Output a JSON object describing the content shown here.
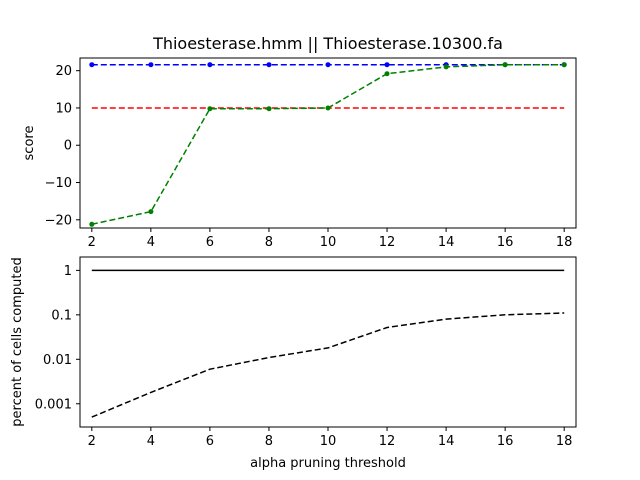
{
  "chart_data": [
    {
      "type": "line",
      "title": "Thioesterase.hmm || Thioesterase.10300.fa",
      "xlabel": "",
      "ylabel": "score",
      "xlim": [
        1.6,
        18.4
      ],
      "ylim": [
        -22.2,
        23.4
      ],
      "x_ticks": [
        2,
        4,
        6,
        8,
        10,
        12,
        14,
        16,
        18
      ],
      "y_ticks": [
        -20,
        -10,
        0,
        10,
        20
      ],
      "x_tick_labels": [
        "2",
        "4",
        "6",
        "8",
        "10",
        "12",
        "14",
        "16",
        "18"
      ],
      "y_tick_labels": [
        "−20",
        "−10",
        "0",
        "10",
        "20"
      ],
      "grid": false,
      "series": [
        {
          "color": "#0000ff",
          "linestyle": "dashed",
          "marker": "circle",
          "x": [
            2,
            4,
            6,
            8,
            10,
            12,
            14,
            16,
            18
          ],
          "y": [
            21.6,
            21.6,
            21.6,
            21.6,
            21.6,
            21.6,
            21.6,
            21.6,
            21.6
          ]
        },
        {
          "color": "#ff0000",
          "linestyle": "dashed",
          "marker": "none",
          "x": [
            2,
            18
          ],
          "y": [
            10,
            10
          ]
        },
        {
          "color": "#008000",
          "linestyle": "dashed",
          "marker": "circle",
          "x": [
            2,
            4,
            6,
            8,
            10,
            12,
            14,
            16,
            18
          ],
          "y": [
            -21.2,
            -17.8,
            9.8,
            9.8,
            10.0,
            19.2,
            21.0,
            21.6,
            21.6
          ]
        }
      ]
    },
    {
      "type": "line",
      "title": "",
      "xlabel": "alpha pruning threshold",
      "ylabel": "percent of cells computed",
      "xlim": [
        1.6,
        18.4
      ],
      "ylim": [
        0.0003,
        2.0
      ],
      "yscale": "log",
      "x_ticks": [
        2,
        4,
        6,
        8,
        10,
        12,
        14,
        16,
        18
      ],
      "y_ticks": [
        0.001,
        0.01,
        0.1,
        1
      ],
      "x_tick_labels": [
        "2",
        "4",
        "6",
        "8",
        "10",
        "12",
        "14",
        "16",
        "18"
      ],
      "y_tick_labels": [
        "0.001",
        "0.01",
        "0.1",
        "1"
      ],
      "grid": false,
      "series": [
        {
          "color": "#000000",
          "linestyle": "solid",
          "marker": "none",
          "x": [
            2,
            4,
            6,
            8,
            10,
            12,
            14,
            16,
            18
          ],
          "y": [
            1,
            1,
            1,
            1,
            1,
            1,
            1,
            1,
            1
          ]
        },
        {
          "color": "#000000",
          "linestyle": "dashed",
          "marker": "none",
          "x": [
            2,
            4,
            6,
            8,
            10,
            12,
            14,
            16,
            18
          ],
          "y": [
            0.0005,
            0.0018,
            0.006,
            0.011,
            0.018,
            0.052,
            0.08,
            0.1,
            0.11
          ]
        }
      ]
    }
  ]
}
